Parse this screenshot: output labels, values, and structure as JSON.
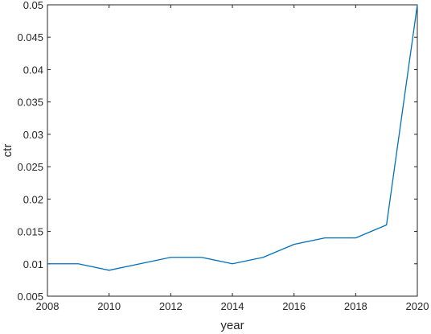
{
  "chart_data": {
    "type": "line",
    "title": "",
    "xlabel": "year",
    "ylabel": "ctr",
    "xlim": [
      2008,
      2020
    ],
    "ylim": [
      0.005,
      0.05
    ],
    "x_ticks": [
      2008,
      2010,
      2012,
      2014,
      2016,
      2018,
      2020
    ],
    "x_tick_labels": [
      "2008",
      "2010",
      "2012",
      "2014",
      "2016",
      "2018",
      "2020"
    ],
    "y_ticks": [
      0.005,
      0.01,
      0.015,
      0.02,
      0.025,
      0.03,
      0.035,
      0.04,
      0.045,
      0.05
    ],
    "y_tick_labels": [
      "0.005",
      "0.01",
      "0.015",
      "0.02",
      "0.025",
      "0.03",
      "0.035",
      "0.04",
      "0.045",
      "0.05"
    ],
    "grid": false,
    "series": [
      {
        "color": "#0072BD",
        "x": [
          2008,
          2009,
          2010,
          2011,
          2012,
          2013,
          2014,
          2015,
          2016,
          2017,
          2018,
          2019,
          2020
        ],
        "y": [
          0.01,
          0.01,
          0.009,
          0.01,
          0.011,
          0.011,
          0.01,
          0.011,
          0.013,
          0.014,
          0.014,
          0.016,
          0.05
        ]
      }
    ]
  }
}
